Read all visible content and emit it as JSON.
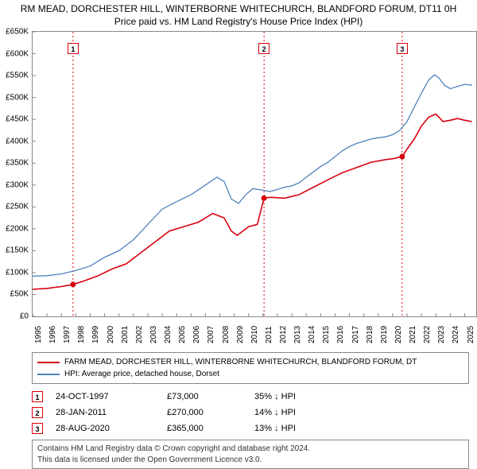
{
  "title_line1": "RM MEAD, DORCHESTER HILL, WINTERBORNE WHITECHURCH, BLANDFORD FORUM, DT11 0H",
  "title_line2": "Price paid vs. HM Land Registry's House Price Index (HPI)",
  "chart": {
    "type": "line",
    "xlim": [
      1995,
      2025.8
    ],
    "ylim": [
      0,
      650000
    ],
    "ytick_step": 50000,
    "y_ticks": [
      "£0",
      "£50K",
      "£100K",
      "£150K",
      "£200K",
      "£250K",
      "£300K",
      "£350K",
      "£400K",
      "£450K",
      "£500K",
      "£550K",
      "£600K",
      "£650K"
    ],
    "x_ticks": [
      1995,
      1996,
      1997,
      1998,
      1999,
      2000,
      2001,
      2002,
      2003,
      2004,
      2005,
      2006,
      2007,
      2008,
      2009,
      2010,
      2011,
      2012,
      2013,
      2014,
      2015,
      2016,
      2017,
      2018,
      2019,
      2020,
      2021,
      2022,
      2023,
      2024,
      2025
    ],
    "grid_color": "#888888",
    "background_color": "#ffffff",
    "series": [
      {
        "name": "red",
        "color": "#d8000c",
        "width": 1.6,
        "data": [
          [
            1995.0,
            62000
          ],
          [
            1996.0,
            64000
          ],
          [
            1997.0,
            68000
          ],
          [
            1997.8,
            73000
          ],
          [
            1998.5,
            80000
          ],
          [
            1999.5,
            92000
          ],
          [
            2000.5,
            108000
          ],
          [
            2001.5,
            120000
          ],
          [
            2002.5,
            145000
          ],
          [
            2003.5,
            170000
          ],
          [
            2004.5,
            195000
          ],
          [
            2005.5,
            205000
          ],
          [
            2006.5,
            215000
          ],
          [
            2007.5,
            235000
          ],
          [
            2008.3,
            225000
          ],
          [
            2008.8,
            195000
          ],
          [
            2009.2,
            185000
          ],
          [
            2009.6,
            195000
          ],
          [
            2010.0,
            205000
          ],
          [
            2010.6,
            210000
          ],
          [
            2011.07,
            270000
          ],
          [
            2011.5,
            272000
          ],
          [
            2012.5,
            270000
          ],
          [
            2013.5,
            278000
          ],
          [
            2014.5,
            295000
          ],
          [
            2015.5,
            312000
          ],
          [
            2016.5,
            328000
          ],
          [
            2017.5,
            340000
          ],
          [
            2018.5,
            352000
          ],
          [
            2019.5,
            358000
          ],
          [
            2020.0,
            360000
          ],
          [
            2020.66,
            365000
          ],
          [
            2021.0,
            382000
          ],
          [
            2021.5,
            405000
          ],
          [
            2022.0,
            435000
          ],
          [
            2022.5,
            455000
          ],
          [
            2023.0,
            462000
          ],
          [
            2023.5,
            445000
          ],
          [
            2024.0,
            448000
          ],
          [
            2024.5,
            452000
          ],
          [
            2025.0,
            448000
          ],
          [
            2025.5,
            445000
          ]
        ]
      },
      {
        "name": "blue",
        "color": "#5082be",
        "width": 1.3,
        "data": [
          [
            1995.0,
            92000
          ],
          [
            1996.0,
            93000
          ],
          [
            1997.0,
            97000
          ],
          [
            1998.0,
            105000
          ],
          [
            1999.0,
            115000
          ],
          [
            2000.0,
            135000
          ],
          [
            2001.0,
            150000
          ],
          [
            2002.0,
            175000
          ],
          [
            2003.0,
            210000
          ],
          [
            2004.0,
            245000
          ],
          [
            2005.0,
            262000
          ],
          [
            2006.0,
            278000
          ],
          [
            2007.0,
            300000
          ],
          [
            2007.8,
            318000
          ],
          [
            2008.3,
            308000
          ],
          [
            2008.8,
            268000
          ],
          [
            2009.3,
            258000
          ],
          [
            2009.8,
            278000
          ],
          [
            2010.3,
            292000
          ],
          [
            2011.0,
            288000
          ],
          [
            2011.5,
            285000
          ],
          [
            2012.0,
            290000
          ],
          [
            2012.5,
            295000
          ],
          [
            2013.0,
            298000
          ],
          [
            2013.5,
            305000
          ],
          [
            2014.0,
            318000
          ],
          [
            2014.5,
            330000
          ],
          [
            2015.0,
            342000
          ],
          [
            2015.5,
            352000
          ],
          [
            2016.0,
            365000
          ],
          [
            2016.5,
            378000
          ],
          [
            2017.0,
            388000
          ],
          [
            2017.5,
            395000
          ],
          [
            2018.0,
            400000
          ],
          [
            2018.5,
            405000
          ],
          [
            2019.0,
            408000
          ],
          [
            2019.5,
            410000
          ],
          [
            2020.0,
            415000
          ],
          [
            2020.5,
            425000
          ],
          [
            2021.0,
            445000
          ],
          [
            2021.5,
            478000
          ],
          [
            2022.0,
            510000
          ],
          [
            2022.5,
            540000
          ],
          [
            2022.9,
            552000
          ],
          [
            2023.2,
            545000
          ],
          [
            2023.6,
            528000
          ],
          [
            2024.0,
            520000
          ],
          [
            2024.5,
            525000
          ],
          [
            2025.0,
            530000
          ],
          [
            2025.5,
            528000
          ]
        ]
      }
    ],
    "vlines": [
      {
        "x": 1997.81,
        "color": "#d8000c"
      },
      {
        "x": 2011.07,
        "color": "#d8000c"
      },
      {
        "x": 2020.66,
        "color": "#d8000c"
      }
    ],
    "markers": [
      {
        "label": "1",
        "x": 1997.81,
        "y": 73000,
        "color": "#d8000c"
      },
      {
        "label": "2",
        "x": 2011.07,
        "y": 270000,
        "color": "#d8000c"
      },
      {
        "label": "3",
        "x": 2020.66,
        "y": 365000,
        "color": "#d8000c"
      }
    ],
    "marker_boxes": [
      {
        "label": "1",
        "x": 1997.81,
        "color": "#d8000c"
      },
      {
        "label": "2",
        "x": 2011.07,
        "color": "#d8000c"
      },
      {
        "label": "3",
        "x": 2020.66,
        "color": "#d8000c"
      }
    ]
  },
  "legend": {
    "items": [
      {
        "color": "#d8000c",
        "label": "FARM MEAD, DORCHESTER HILL, WINTERBORNE WHITECHURCH, BLANDFORD FORUM, DT"
      },
      {
        "color": "#5082be",
        "label": "HPI: Average price, detached house, Dorset"
      }
    ]
  },
  "annotations": [
    {
      "n": "1",
      "color": "#d8000c",
      "date": "24-OCT-1997",
      "price": "£73,000",
      "diff": "35% ↓ HPI"
    },
    {
      "n": "2",
      "color": "#d8000c",
      "date": "28-JAN-2011",
      "price": "£270,000",
      "diff": "14% ↓ HPI"
    },
    {
      "n": "3",
      "color": "#d8000c",
      "date": "28-AUG-2020",
      "price": "£365,000",
      "diff": "13% ↓ HPI"
    }
  ],
  "footer_line1": "Contains HM Land Registry data © Crown copyright and database right 2024.",
  "footer_line2": "This data is licensed under the Open Government Licence v3.0."
}
